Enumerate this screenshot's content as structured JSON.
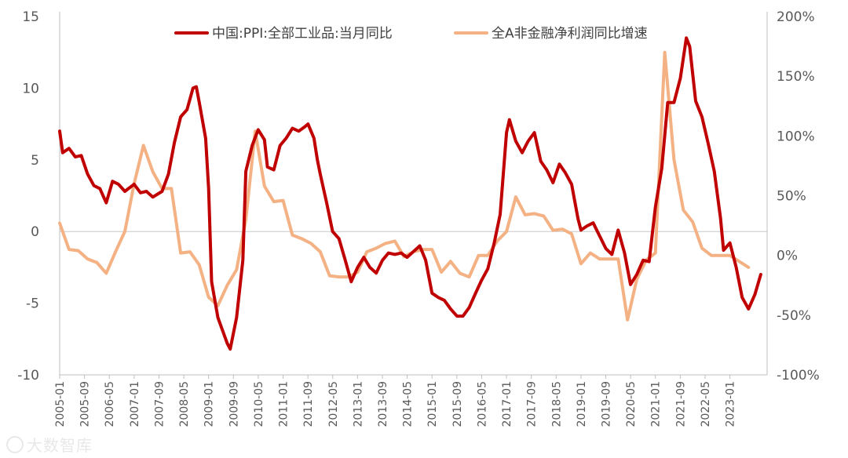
{
  "chart_data": {
    "type": "line",
    "title": "",
    "legend_position": "top",
    "zero_line": true,
    "grid": false,
    "y_left": {
      "min": -10,
      "max": 15,
      "ticks": [
        "-10",
        "-5",
        "0",
        "5",
        "10",
        "15"
      ]
    },
    "y_right": {
      "min": -100,
      "max": 200,
      "ticks": [
        "-100%",
        "-50%",
        "0%",
        "50%",
        "100%",
        "150%",
        "200%"
      ]
    },
    "x_ticks": [
      "2005-01",
      "2005-09",
      "2006-05",
      "2007-01",
      "2007-09",
      "2008-05",
      "2009-01",
      "2009-09",
      "2010-05",
      "2011-01",
      "2011-09",
      "2012-05",
      "2013-01",
      "2013-09",
      "2014-05",
      "2015-01",
      "2015-09",
      "2016-05",
      "2017-01",
      "2017-09",
      "2018-05",
      "2019-01",
      "2019-09",
      "2020-05",
      "2021-01",
      "2021-09",
      "2022-05",
      "2023-01"
    ],
    "series": [
      {
        "name": "中国:PPI:全部工业品:当月同比",
        "axis": "left",
        "color": "#c00000",
        "points": [
          [
            2005.0,
            7.0
          ],
          [
            2005.08,
            5.5
          ],
          [
            2005.25,
            5.8
          ],
          [
            2005.42,
            5.2
          ],
          [
            2005.58,
            5.3
          ],
          [
            2005.75,
            4.0
          ],
          [
            2005.92,
            3.2
          ],
          [
            2006.08,
            3.0
          ],
          [
            2006.25,
            2.0
          ],
          [
            2006.42,
            3.5
          ],
          [
            2006.58,
            3.3
          ],
          [
            2006.75,
            2.8
          ],
          [
            2007.0,
            3.3
          ],
          [
            2007.17,
            2.7
          ],
          [
            2007.33,
            2.8
          ],
          [
            2007.5,
            2.4
          ],
          [
            2007.75,
            2.8
          ],
          [
            2007.92,
            4.0
          ],
          [
            2008.08,
            6.2
          ],
          [
            2008.25,
            8.0
          ],
          [
            2008.42,
            8.5
          ],
          [
            2008.58,
            10.0
          ],
          [
            2008.67,
            10.1
          ],
          [
            2008.75,
            9.0
          ],
          [
            2008.92,
            6.5
          ],
          [
            2009.0,
            3.0
          ],
          [
            2009.08,
            -3.5
          ],
          [
            2009.25,
            -6.0
          ],
          [
            2009.5,
            -7.8
          ],
          [
            2009.58,
            -8.2
          ],
          [
            2009.75,
            -6.0
          ],
          [
            2009.92,
            -2.0
          ],
          [
            2010.0,
            4.2
          ],
          [
            2010.17,
            6.0
          ],
          [
            2010.33,
            7.1
          ],
          [
            2010.5,
            6.4
          ],
          [
            2010.58,
            4.5
          ],
          [
            2010.75,
            4.3
          ],
          [
            2010.92,
            6.0
          ],
          [
            2011.08,
            6.5
          ],
          [
            2011.25,
            7.2
          ],
          [
            2011.42,
            7.0
          ],
          [
            2011.58,
            7.3
          ],
          [
            2011.67,
            7.5
          ],
          [
            2011.83,
            6.5
          ],
          [
            2011.92,
            5.0
          ],
          [
            2012.0,
            4.0
          ],
          [
            2012.17,
            2.0
          ],
          [
            2012.33,
            0.0
          ],
          [
            2012.5,
            -0.5
          ],
          [
            2012.67,
            -2.0
          ],
          [
            2012.83,
            -3.5
          ],
          [
            2013.0,
            -2.5
          ],
          [
            2013.17,
            -1.8
          ],
          [
            2013.33,
            -2.5
          ],
          [
            2013.5,
            -2.9
          ],
          [
            2013.67,
            -2.0
          ],
          [
            2013.83,
            -1.5
          ],
          [
            2014.0,
            -1.6
          ],
          [
            2014.17,
            -1.5
          ],
          [
            2014.33,
            -1.8
          ],
          [
            2014.5,
            -1.4
          ],
          [
            2014.67,
            -1.0
          ],
          [
            2014.83,
            -2.0
          ],
          [
            2015.0,
            -4.3
          ],
          [
            2015.17,
            -4.6
          ],
          [
            2015.33,
            -4.8
          ],
          [
            2015.5,
            -5.4
          ],
          [
            2015.67,
            -5.9
          ],
          [
            2015.83,
            -5.9
          ],
          [
            2016.0,
            -5.3
          ],
          [
            2016.17,
            -4.3
          ],
          [
            2016.33,
            -3.4
          ],
          [
            2016.5,
            -2.6
          ],
          [
            2016.67,
            -0.8
          ],
          [
            2016.83,
            1.2
          ],
          [
            2017.0,
            6.9
          ],
          [
            2017.08,
            7.8
          ],
          [
            2017.25,
            6.3
          ],
          [
            2017.42,
            5.5
          ],
          [
            2017.58,
            6.3
          ],
          [
            2017.75,
            6.9
          ],
          [
            2017.92,
            4.9
          ],
          [
            2018.08,
            4.3
          ],
          [
            2018.25,
            3.4
          ],
          [
            2018.42,
            4.7
          ],
          [
            2018.58,
            4.1
          ],
          [
            2018.75,
            3.3
          ],
          [
            2018.92,
            0.9
          ],
          [
            2019.0,
            0.1
          ],
          [
            2019.17,
            0.4
          ],
          [
            2019.33,
            0.6
          ],
          [
            2019.5,
            -0.3
          ],
          [
            2019.67,
            -1.2
          ],
          [
            2019.83,
            -1.6
          ],
          [
            2020.0,
            0.1
          ],
          [
            2020.17,
            -1.5
          ],
          [
            2020.33,
            -3.7
          ],
          [
            2020.5,
            -3.0
          ],
          [
            2020.67,
            -2.0
          ],
          [
            2020.83,
            -2.1
          ],
          [
            2021.0,
            1.7
          ],
          [
            2021.17,
            4.4
          ],
          [
            2021.33,
            9.0
          ],
          [
            2021.5,
            9.0
          ],
          [
            2021.67,
            10.7
          ],
          [
            2021.83,
            13.5
          ],
          [
            2021.92,
            12.9
          ],
          [
            2022.08,
            9.1
          ],
          [
            2022.25,
            8.0
          ],
          [
            2022.42,
            6.1
          ],
          [
            2022.58,
            4.2
          ],
          [
            2022.75,
            0.9
          ],
          [
            2022.83,
            -1.3
          ],
          [
            2023.0,
            -0.8
          ],
          [
            2023.17,
            -2.5
          ],
          [
            2023.33,
            -4.6
          ],
          [
            2023.5,
            -5.4
          ],
          [
            2023.67,
            -4.4
          ],
          [
            2023.83,
            -3.0
          ]
        ]
      },
      {
        "name": "全A非金融净利润同比增速",
        "axis": "right",
        "color": "#f4b183",
        "points": [
          [
            2005.0,
            27
          ],
          [
            2005.25,
            5
          ],
          [
            2005.5,
            4
          ],
          [
            2005.75,
            -3
          ],
          [
            2006.0,
            -6
          ],
          [
            2006.25,
            -15
          ],
          [
            2006.5,
            3
          ],
          [
            2006.75,
            20
          ],
          [
            2007.0,
            60
          ],
          [
            2007.25,
            92
          ],
          [
            2007.5,
            70
          ],
          [
            2007.75,
            56
          ],
          [
            2008.0,
            56
          ],
          [
            2008.25,
            2
          ],
          [
            2008.5,
            3
          ],
          [
            2008.75,
            -8
          ],
          [
            2009.0,
            -35
          ],
          [
            2009.25,
            -42
          ],
          [
            2009.5,
            -25
          ],
          [
            2009.75,
            -12
          ],
          [
            2010.0,
            30
          ],
          [
            2010.25,
            104
          ],
          [
            2010.5,
            58
          ],
          [
            2010.75,
            45
          ],
          [
            2011.0,
            46
          ],
          [
            2011.25,
            17
          ],
          [
            2011.5,
            14
          ],
          [
            2011.75,
            10
          ],
          [
            2012.0,
            3
          ],
          [
            2012.25,
            -17
          ],
          [
            2012.5,
            -18
          ],
          [
            2012.75,
            -18
          ],
          [
            2013.0,
            -14
          ],
          [
            2013.25,
            3
          ],
          [
            2013.5,
            6
          ],
          [
            2013.75,
            10
          ],
          [
            2014.0,
            12
          ],
          [
            2014.25,
            -1
          ],
          [
            2014.5,
            3
          ],
          [
            2014.75,
            5
          ],
          [
            2015.0,
            5
          ],
          [
            2015.25,
            -14
          ],
          [
            2015.5,
            -5
          ],
          [
            2015.75,
            -15
          ],
          [
            2016.0,
            -18
          ],
          [
            2016.25,
            0
          ],
          [
            2016.5,
            0
          ],
          [
            2016.75,
            12
          ],
          [
            2017.0,
            20
          ],
          [
            2017.25,
            49
          ],
          [
            2017.5,
            34
          ],
          [
            2017.75,
            35
          ],
          [
            2018.0,
            33
          ],
          [
            2018.25,
            21
          ],
          [
            2018.5,
            22
          ],
          [
            2018.75,
            18
          ],
          [
            2019.0,
            -7
          ],
          [
            2019.25,
            2
          ],
          [
            2019.5,
            -3
          ],
          [
            2019.75,
            -3
          ],
          [
            2020.0,
            -3
          ],
          [
            2020.25,
            -54
          ],
          [
            2020.5,
            -20
          ],
          [
            2020.75,
            -4
          ],
          [
            2021.0,
            2
          ],
          [
            2021.25,
            170
          ],
          [
            2021.5,
            80
          ],
          [
            2021.75,
            38
          ],
          [
            2022.0,
            28
          ],
          [
            2022.25,
            6
          ],
          [
            2022.5,
            0
          ],
          [
            2022.75,
            0
          ],
          [
            2023.0,
            0
          ],
          [
            2023.25,
            -5
          ],
          [
            2023.5,
            -10
          ]
        ]
      }
    ]
  },
  "watermark": "大数智库"
}
